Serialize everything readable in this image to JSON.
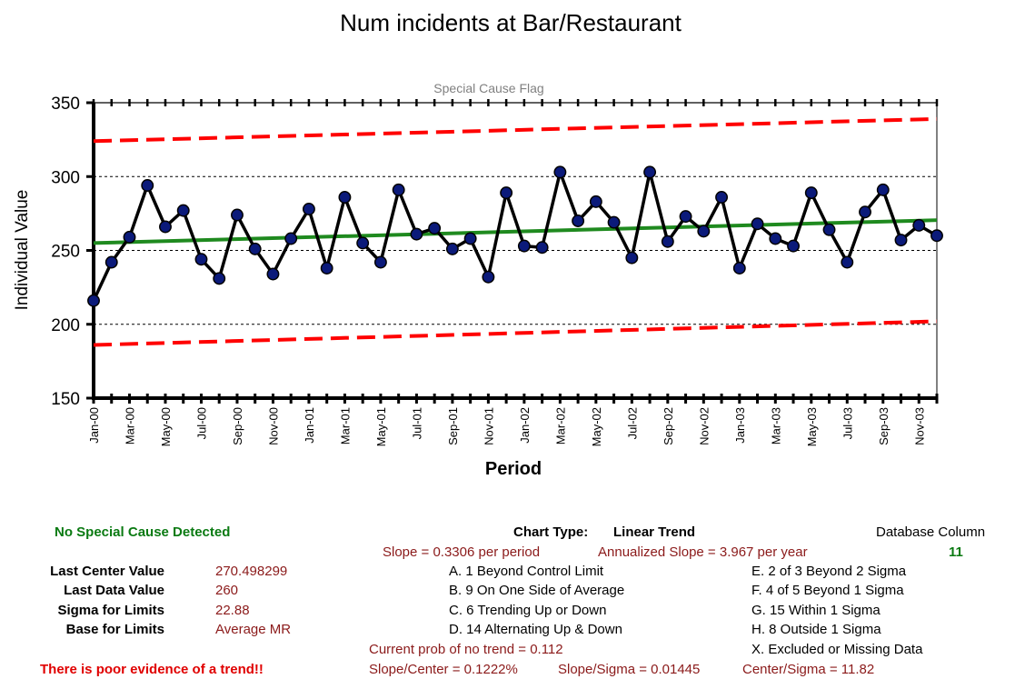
{
  "chart_data": {
    "type": "line",
    "title": "Num incidents at Bar/Restaurant",
    "subtitle": "Special Cause Flag",
    "xlabel": "Period",
    "ylabel": "Individual Value",
    "ylim": [
      150,
      350
    ],
    "yticks": [
      150,
      200,
      250,
      300,
      350
    ],
    "grid": true,
    "categories": [
      "Jan-00",
      "Feb-00",
      "Mar-00",
      "Apr-00",
      "May-00",
      "Jun-00",
      "Jul-00",
      "Aug-00",
      "Sep-00",
      "Oct-00",
      "Nov-00",
      "Dec-00",
      "Jan-01",
      "Feb-01",
      "Mar-01",
      "Apr-01",
      "May-01",
      "Jun-01",
      "Jul-01",
      "Aug-01",
      "Sep-01",
      "Oct-01",
      "Nov-01",
      "Dec-01",
      "Jan-02",
      "Feb-02",
      "Mar-02",
      "Apr-02",
      "May-02",
      "Jun-02",
      "Jul-02",
      "Aug-02",
      "Sep-02",
      "Oct-02",
      "Nov-02",
      "Dec-02",
      "Jan-03",
      "Feb-03",
      "Mar-03",
      "Apr-03",
      "May-03",
      "Jun-03",
      "Jul-03",
      "Aug-03",
      "Sep-03",
      "Oct-03",
      "Nov-03",
      "Dec-03"
    ],
    "xtick_labels": [
      "Jan-00",
      "Mar-00",
      "May-00",
      "Jul-00",
      "Sep-00",
      "Nov-00",
      "Jan-01",
      "Mar-01",
      "May-01",
      "Jul-01",
      "Sep-01",
      "Nov-01",
      "Jan-02",
      "Mar-02",
      "May-02",
      "Jul-02",
      "Sep-02",
      "Nov-02",
      "Jan-03",
      "Mar-03",
      "May-03",
      "Jul-03",
      "Sep-03",
      "Nov-03"
    ],
    "values": [
      216,
      242,
      259,
      294,
      266,
      277,
      244,
      231,
      274,
      251,
      234,
      258,
      278,
      238,
      286,
      255,
      242,
      291,
      261,
      265,
      251,
      258,
      232,
      289,
      253,
      252,
      303,
      270,
      283,
      269,
      245,
      303,
      256,
      273,
      263,
      286,
      238,
      268,
      258,
      253,
      289,
      264,
      242,
      276,
      291,
      257,
      267,
      260
    ],
    "center_line": [
      255,
      270.5
    ],
    "upper_limit": [
      324,
      339
    ],
    "lower_limit": [
      186,
      202
    ],
    "colors": {
      "data": "#000000",
      "marker": "#0b1a7a",
      "center": "#1f8a1f",
      "limits": "#ff0000"
    }
  },
  "summary": {
    "status": "No Special Cause Detected",
    "rows": [
      {
        "label": "Last Center Value",
        "value": "270.498299"
      },
      {
        "label": "Last Data Value",
        "value": "260"
      },
      {
        "label": "Sigma for Limits",
        "value": "22.88"
      },
      {
        "label": "Base for Limits",
        "value": "Average MR"
      }
    ],
    "trend_note": "There is poor evidence of a trend!!"
  },
  "chart_type": {
    "label": "Chart Type:",
    "value": "Linear Trend"
  },
  "slope": "Slope = 0.3306 per period",
  "annualized": "Annualized Slope = 3.967 per year",
  "database": {
    "label": "Database Column",
    "value": "11"
  },
  "rules_left": [
    "A. 1 Beyond Control Limit",
    "B. 9 On One Side of Average",
    "C. 6 Trending Up or Down",
    "D. 14 Alternating  Up & Down"
  ],
  "rules_right": [
    "E. 2 of 3 Beyond 2 Sigma",
    "F. 4 of 5 Beyond 1 Sigma",
    "G. 15 Within 1 Sigma",
    "H. 8 Outside 1 Sigma",
    "X.  Excluded or Missing Data"
  ],
  "prob": "Current prob of no trend = 0.112",
  "ratios": {
    "slope_center": "Slope/Center = 0.1222%",
    "slope_sigma": "Slope/Sigma = 0.01445",
    "center_sigma": "Center/Sigma = 11.82"
  }
}
